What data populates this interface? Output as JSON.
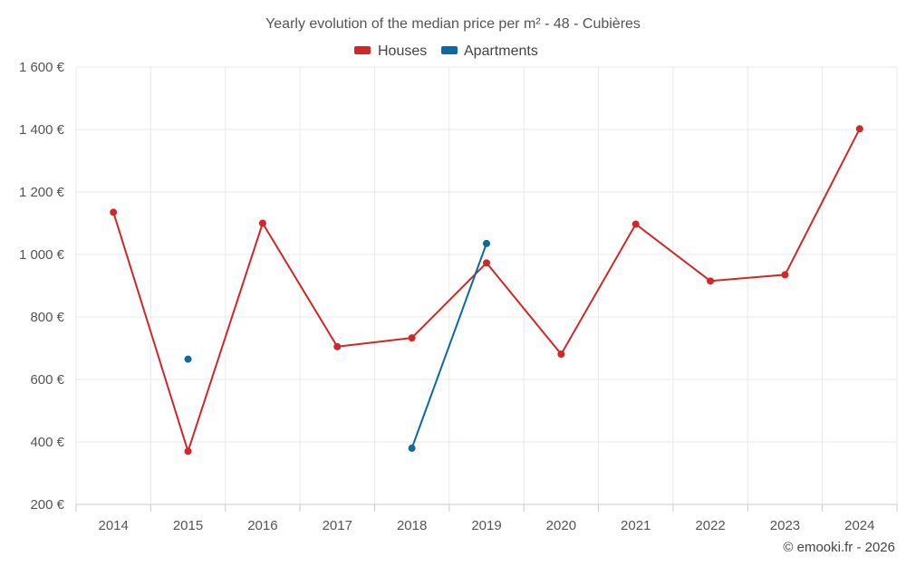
{
  "chart_data": {
    "type": "line",
    "title": "Yearly evolution of the median price per m² - 48 - Cubières",
    "categories": [
      "2014",
      "2015",
      "2016",
      "2017",
      "2018",
      "2019",
      "2020",
      "2021",
      "2022",
      "2023",
      "2024"
    ],
    "y_ticks": [
      200,
      400,
      600,
      800,
      1000,
      1200,
      1400,
      1600
    ],
    "y_tick_labels": [
      "200 €",
      "400 €",
      "600 €",
      "800 €",
      "1 000 €",
      "1 200 €",
      "1 400 €",
      "1 600 €"
    ],
    "ylim": [
      200,
      1600
    ],
    "grid": true,
    "legend_position": "top-center",
    "series": [
      {
        "name": "Houses",
        "color": "#d32626",
        "values": [
          1135,
          370,
          1100,
          705,
          733,
          973,
          681,
          1097,
          915,
          935,
          1402
        ]
      },
      {
        "name": "Apartments",
        "color": "#0b6aa1",
        "values": [
          null,
          665,
          null,
          null,
          380,
          1035,
          null,
          null,
          null,
          null,
          null
        ]
      }
    ],
    "credit": "© emooki.fr - 2026"
  }
}
